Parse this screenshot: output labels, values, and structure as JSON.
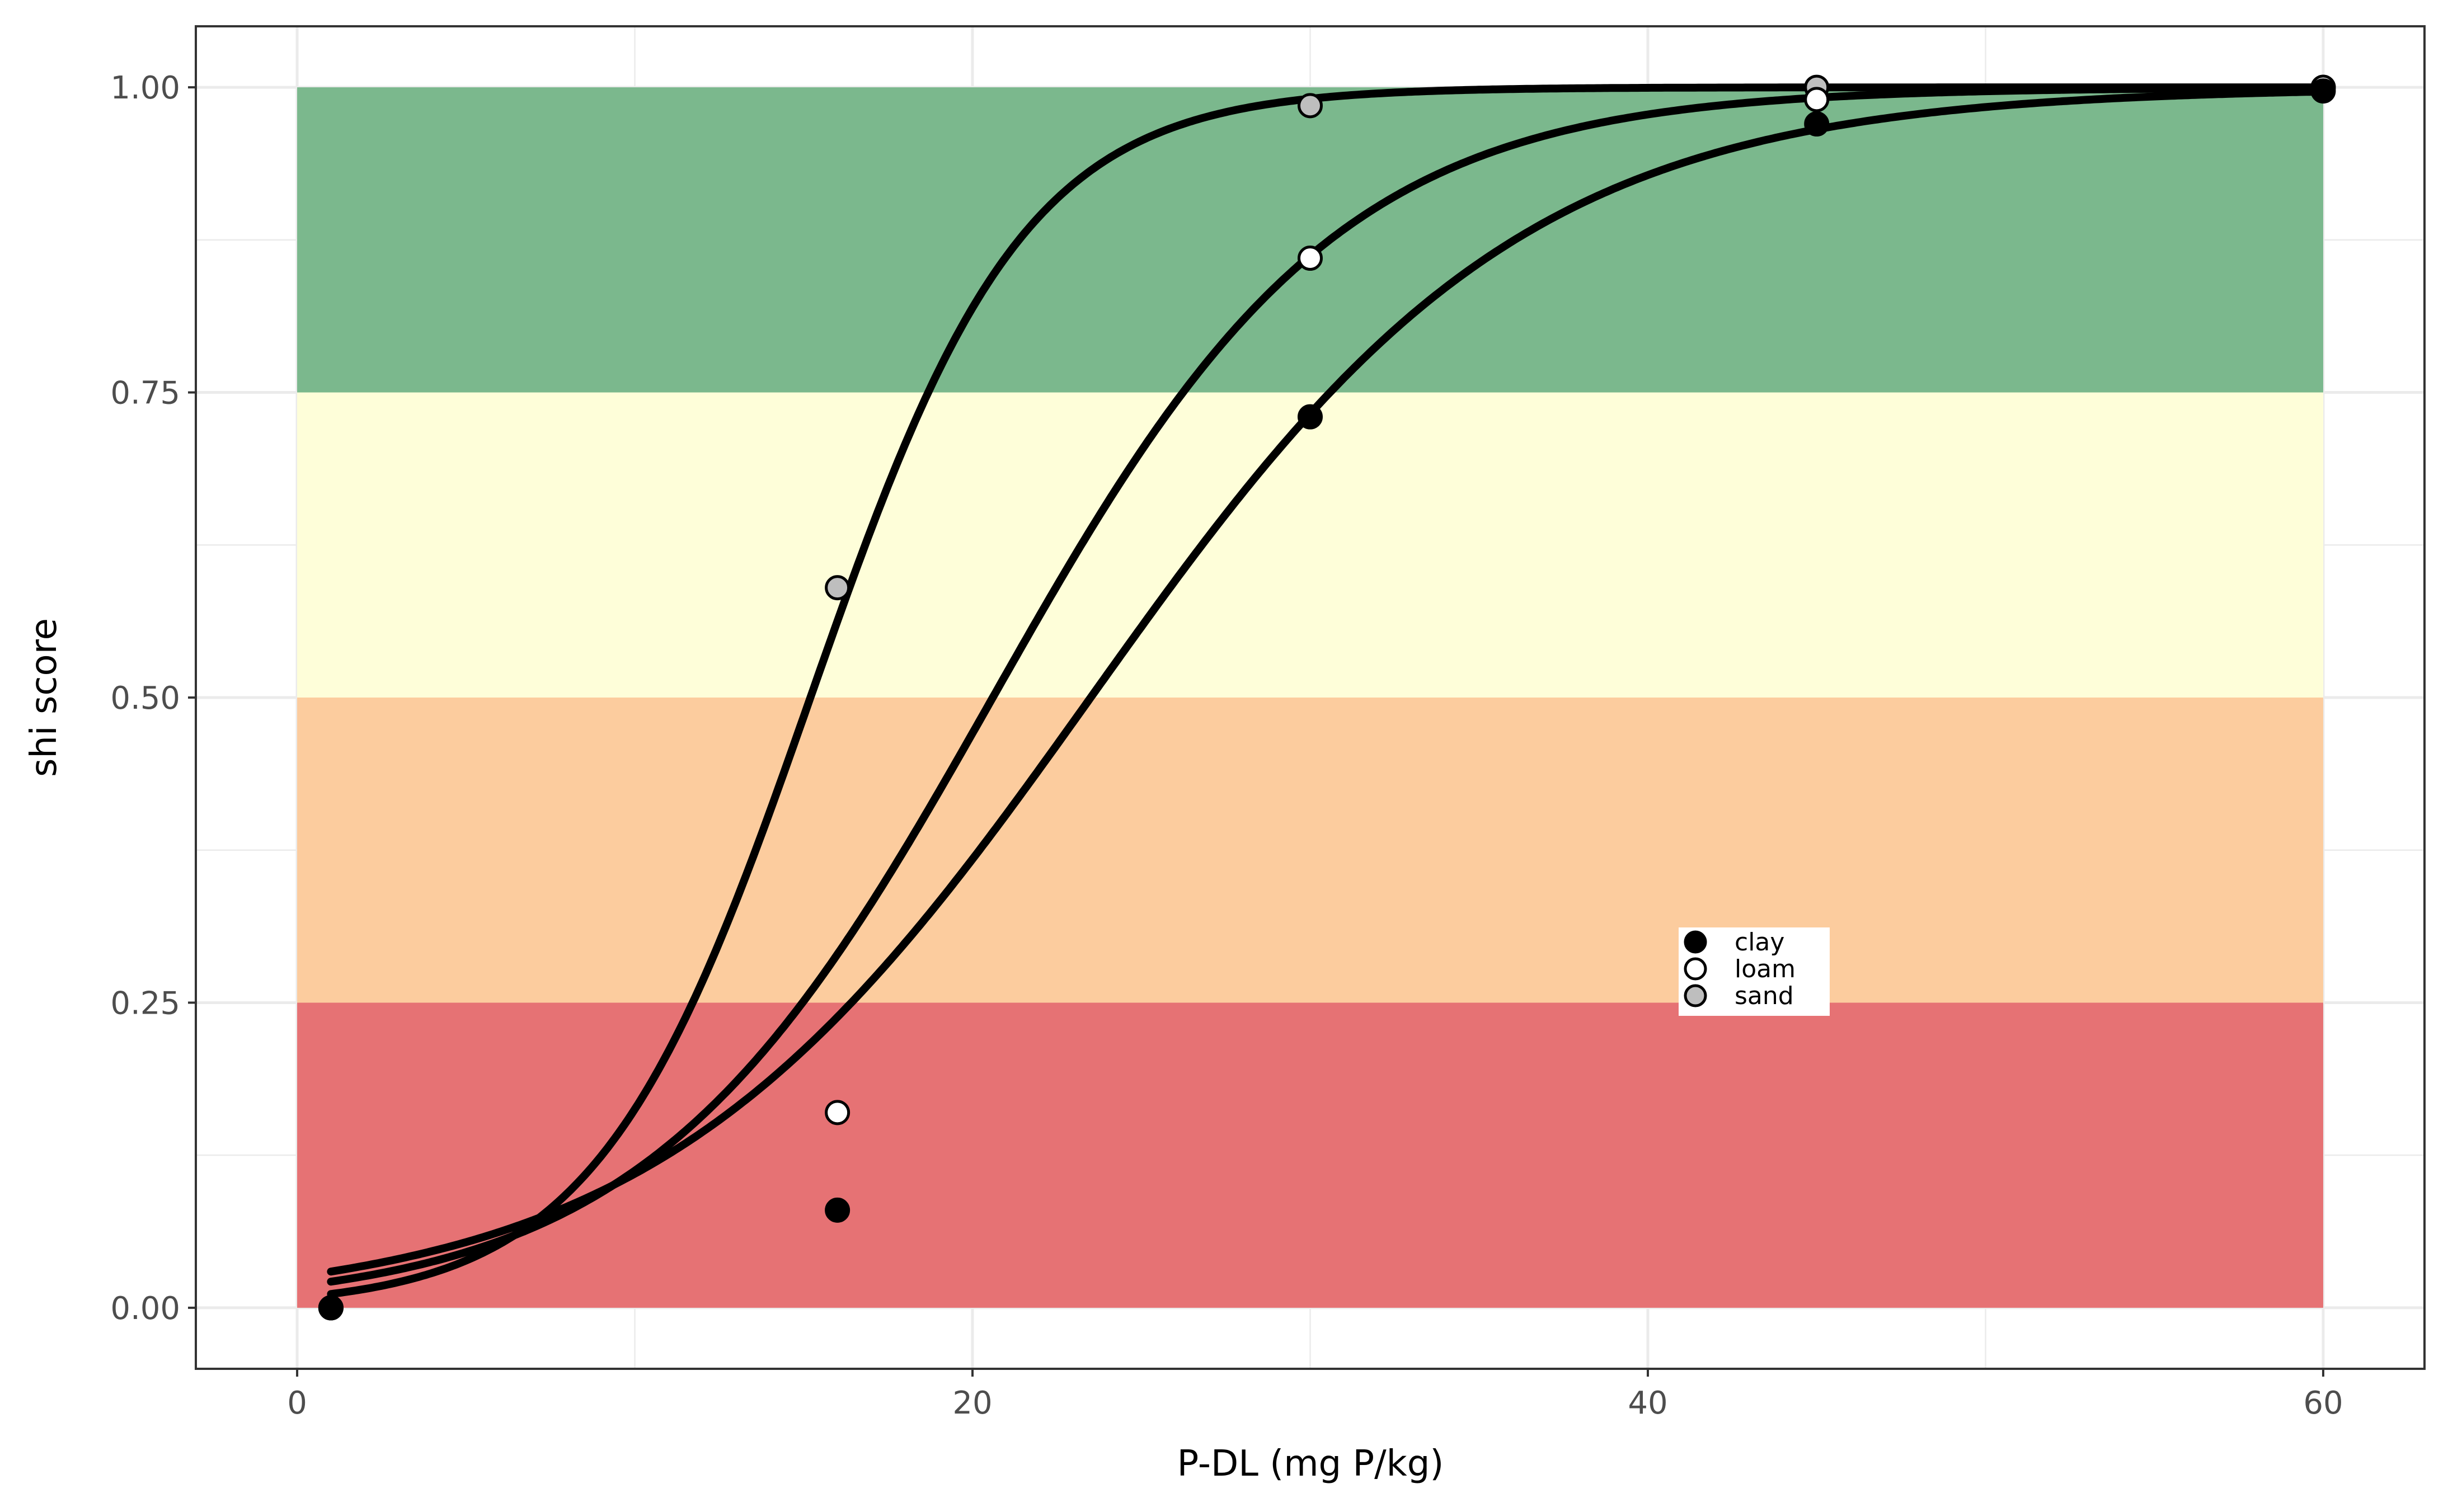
{
  "chart_data": {
    "type": "line",
    "xlabel": "P-DL (mg P/kg)",
    "ylabel": "shi score",
    "xlim": [
      -3,
      63
    ],
    "ylim": [
      -0.05,
      1.05
    ],
    "x_ticks": [
      0,
      20,
      40,
      60
    ],
    "x_tick_labels": [
      "0",
      "20",
      "40",
      "60"
    ],
    "y_ticks": [
      0,
      0.25,
      0.5,
      0.75,
      1
    ],
    "y_tick_labels": [
      "0.00",
      "0.25",
      "0.50",
      "0.75",
      "1.00"
    ],
    "grid": true,
    "legend_position": "inside-bottom-right",
    "bands": [
      {
        "ymin": 0.0,
        "ymax": 0.25,
        "xmin": 0,
        "xmax": 60,
        "color": "#e67274"
      },
      {
        "ymin": 0.25,
        "ymax": 0.5,
        "xmin": 0,
        "xmax": 60,
        "color": "#fccc9e"
      },
      {
        "ymin": 0.5,
        "ymax": 0.75,
        "xmin": 0,
        "xmax": 60,
        "color": "#fefed9"
      },
      {
        "ymin": 0.75,
        "ymax": 1.0,
        "xmin": 0,
        "xmax": 60,
        "color": "#7bb88d"
      }
    ],
    "series": [
      {
        "name": "sand",
        "fill": "#bebebe",
        "curve": {
          "midpoint": 15.2,
          "rate": 0.315
        },
        "points": [
          [
            1,
            0.0
          ],
          [
            16,
            0.59
          ],
          [
            30,
            0.985
          ],
          [
            45,
            1.0
          ],
          [
            60,
            1.0
          ]
        ]
      },
      {
        "name": "loam",
        "fill": "#ffffff",
        "curve": {
          "midpoint": 20.6,
          "rate": 0.195
        },
        "points": [
          [
            1,
            0.0
          ],
          [
            16,
            0.16
          ],
          [
            30,
            0.86
          ],
          [
            45,
            0.99
          ],
          [
            60,
            1.0
          ]
        ]
      },
      {
        "name": "clay",
        "fill": "#000000",
        "curve": {
          "midpoint": 23.5,
          "rate": 0.155
        },
        "points": [
          [
            1,
            0.0
          ],
          [
            16,
            0.08
          ],
          [
            30,
            0.73
          ],
          [
            45,
            0.97
          ],
          [
            60,
            0.997
          ]
        ]
      }
    ],
    "legend": [
      {
        "label": "clay",
        "fill": "#000000"
      },
      {
        "label": "loam",
        "fill": "#ffffff"
      },
      {
        "label": "sand",
        "fill": "#bebebe"
      }
    ]
  }
}
